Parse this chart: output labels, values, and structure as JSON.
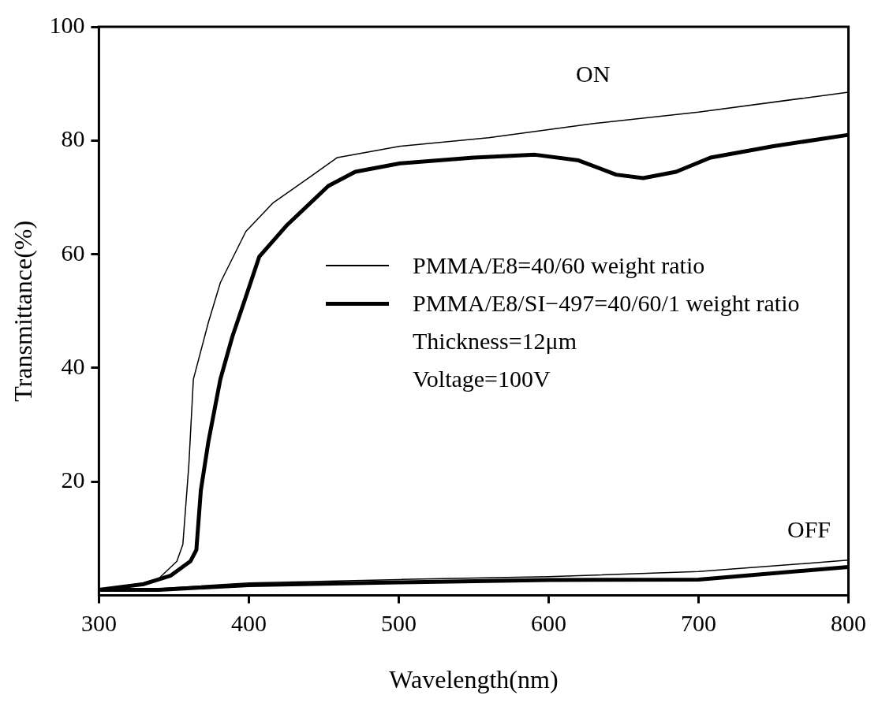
{
  "chart_data": {
    "type": "line",
    "xlabel": "Wavelength(nm)",
    "ylabel": "Transmittance(%)",
    "xlim": [
      300,
      800
    ],
    "ylim": [
      0,
      100
    ],
    "xticks": [
      300,
      400,
      500,
      600,
      700,
      800
    ],
    "yticks": [
      20,
      40,
      60,
      80,
      100
    ],
    "grid": false,
    "legend": "right",
    "marker": "none",
    "line_style": "solid",
    "annotations": [
      "ON",
      "OFF",
      "Thickness=12μm",
      "Voltage=100V"
    ],
    "series": [
      {
        "name": "PMMA/E8=40/60 weight ratio",
        "color": "#000000",
        "x": [
          300,
          320,
          340,
          352,
          356,
          360,
          363,
          373,
          381,
          398,
          416,
          443,
          459,
          501,
          560,
          630,
          700,
          800
        ],
        "values": [
          1,
          1.5,
          3,
          6,
          9,
          23,
          38,
          48,
          55,
          64,
          69,
          74,
          77,
          79,
          80.5,
          83,
          85,
          88.5
        ]
      },
      {
        "name": "PMMA/E8/SI−497=40/60/1 weight ratio",
        "color": "#000000",
        "x": [
          300,
          330,
          348,
          361,
          365,
          368,
          373,
          381,
          389,
          398,
          407,
          425,
          453,
          471,
          501,
          550,
          591,
          620,
          645,
          663,
          685,
          708,
          750,
          800
        ],
        "values": [
          1,
          2,
          3.5,
          6,
          8,
          18.5,
          27,
          38,
          45.5,
          52.5,
          59.6,
          65,
          72,
          74.5,
          76,
          77,
          77.5,
          76.5,
          74,
          73.4,
          74.5,
          77,
          79,
          81
        ]
      },
      {
        "color": "#000000",
        "x": [
          300,
          340,
          400,
          500,
          600,
          700,
          800
        ],
        "values": [
          1,
          1.2,
          2.2,
          2.8,
          3.3,
          4.2,
          6.2
        ]
      },
      {
        "color": "#000000",
        "x": [
          300,
          340,
          400,
          500,
          600,
          700,
          800
        ],
        "values": [
          1,
          1,
          1.8,
          2.3,
          2.7,
          2.8,
          5
        ]
      }
    ]
  }
}
